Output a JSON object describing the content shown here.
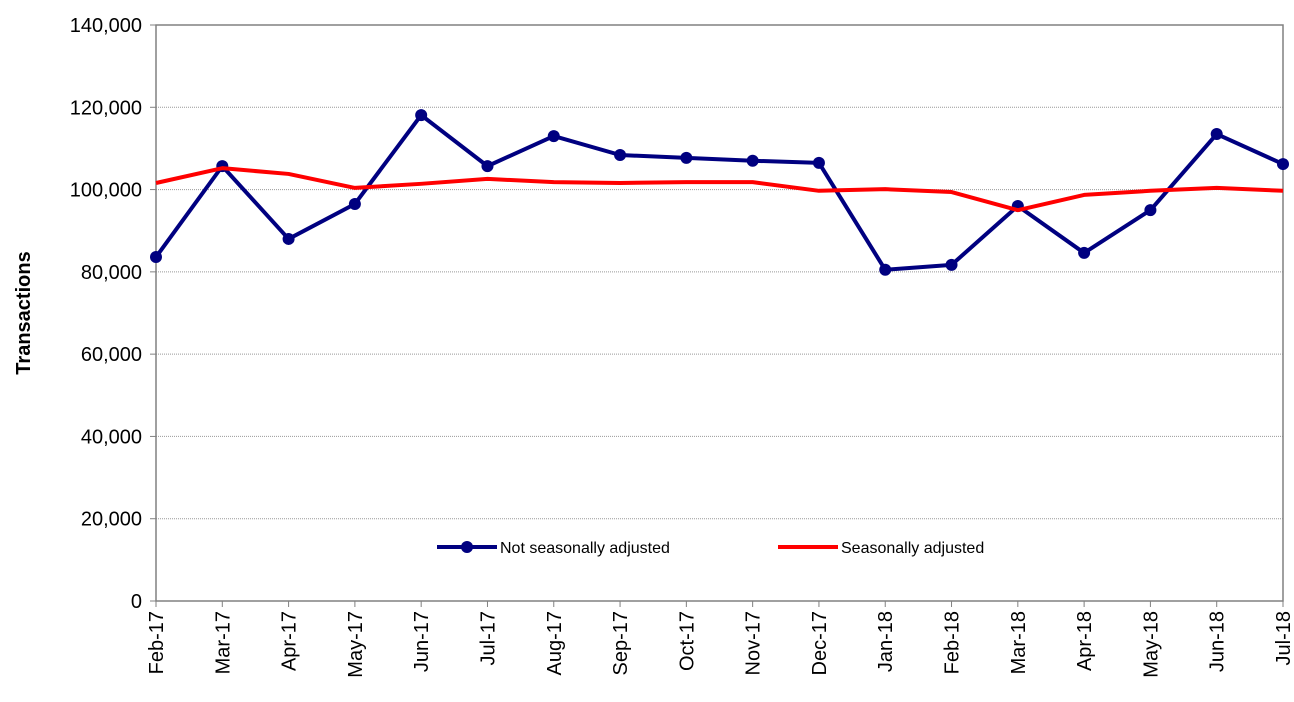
{
  "chart_data": {
    "type": "line",
    "y_label": "Transactions",
    "categories": [
      "Feb-17",
      "Mar-17",
      "Apr-17",
      "May-17",
      "Jun-17",
      "Jul-17",
      "Aug-17",
      "Sep-17",
      "Oct-17",
      "Nov-17",
      "Dec-17",
      "Jan-18",
      "Feb-18",
      "Mar-18",
      "Apr-18",
      "May-18",
      "Jun-18",
      "Jul-18"
    ],
    "series": [
      {
        "name": "Not seasonally adjusted",
        "color": "#000080",
        "marker": true,
        "values": [
          83600,
          105700,
          88000,
          96500,
          118100,
          105700,
          113000,
          108400,
          107700,
          107000,
          106500,
          80500,
          81700,
          96000,
          84600,
          95000,
          113500,
          106200
        ]
      },
      {
        "name": "Seasonally adjusted",
        "color": "#ff0000",
        "marker": false,
        "values": [
          101600,
          105200,
          103800,
          100400,
          101400,
          102600,
          101800,
          101600,
          101800,
          101800,
          99700,
          100100,
          99400,
          95000,
          98700,
          99700,
          100400,
          99700
        ]
      }
    ],
    "ylim": [
      0,
      140000
    ],
    "yticks": [
      0,
      {
        "value": 20000,
        "label": "20,000"
      },
      {
        "value": 40000,
        "label": "40,000"
      },
      {
        "value": 60000,
        "label": "60,000"
      },
      {
        "value": 80000,
        "label": "80,000"
      },
      {
        "value": 100000,
        "label": "100,000"
      },
      {
        "value": 120000,
        "label": "120,000"
      },
      {
        "value": 140000,
        "label": "140,000"
      }
    ],
    "grid": true,
    "legend": "lower center"
  }
}
